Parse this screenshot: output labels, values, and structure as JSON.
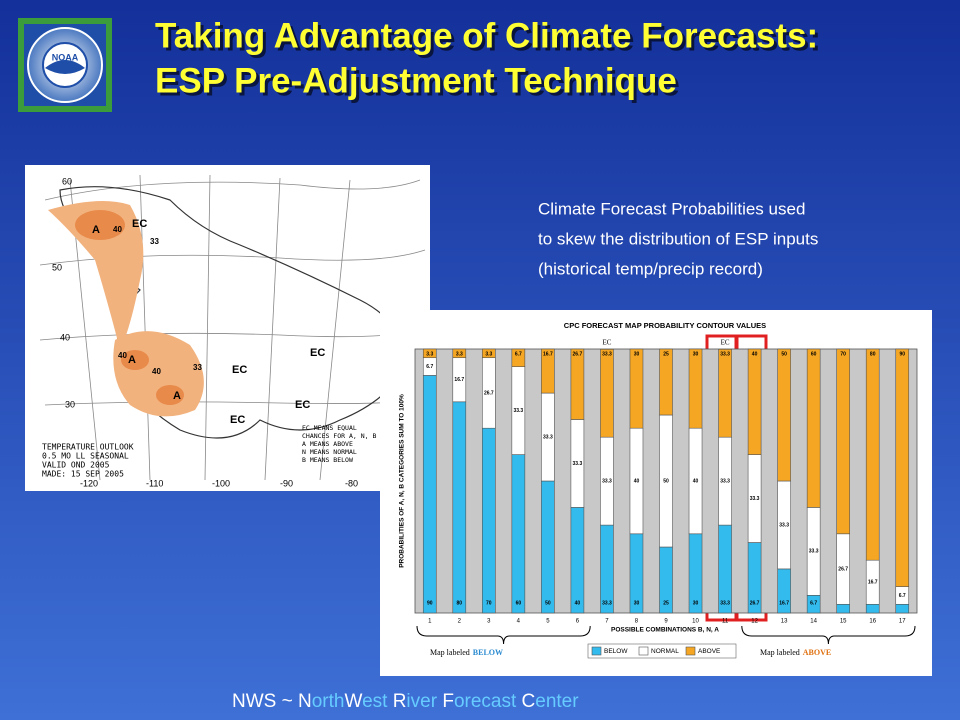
{
  "slide": {
    "title": [
      "Taking Advantage of Climate Forecasts:",
      "ESP Pre-Adjustment Technique"
    ],
    "description": [
      "Climate Forecast Probabilities used",
      "to skew the distribution of ESP inputs",
      "(historical temp/precip record)"
    ],
    "footer": [
      "NWS ~ ",
      "N",
      "orth",
      "W",
      "est",
      " R",
      "iver",
      " F",
      "orecast",
      " C",
      "enter"
    ],
    "logo": "NOAA",
    "map": {
      "outlook": [
        "TEMPERATURE OUTLOOK",
        "0.5 MO LL SEASONAL",
        "VALID OND 2005",
        "MADE: 15 SEP 2005"
      ],
      "legend": [
        "EC MEANS EQUAL",
        "CHANCES FOR A, N, B",
        "A MEANS ABOVE",
        "N MEANS NORMAL",
        "B MEANS BELOW"
      ],
      "lat_labels": [
        "60",
        "50",
        "40",
        "30"
      ],
      "lon_labels": [
        "-120",
        "-110",
        "-100",
        "-90",
        "-80"
      ],
      "regions": [
        "EC",
        "EC",
        "EC",
        "EC",
        "EC",
        "A",
        "A",
        "A",
        "40",
        "33",
        "40",
        "33",
        "40"
      ]
    }
  },
  "chart_data": {
    "type": "stacked_bar",
    "title": "CPC FORECAST MAP PROBABILITY CONTOUR VALUES",
    "y_label": "PROBABILITIES OF A, N, B CATEGORIES SUM TO 100%",
    "x_label": "POSSIBLE COMBINATIONS B, N, A",
    "categories": [
      "1",
      "2",
      "3",
      "4",
      "5",
      "6",
      "7",
      "8",
      "9",
      "10",
      "11",
      "12",
      "13",
      "14",
      "15",
      "16",
      "17"
    ],
    "series": [
      {
        "name": "BELOW",
        "color": "#33bbee",
        "values": [
          90,
          80,
          70,
          60,
          50,
          40,
          33.3,
          30,
          25,
          30,
          33.3,
          26.7,
          16.7,
          6.7,
          3.3,
          3.3,
          3.3
        ]
      },
      {
        "name": "NORMAL",
        "color": "#ffffff",
        "values": [
          6.7,
          16.7,
          26.7,
          33.3,
          33.3,
          33.3,
          33.3,
          40,
          50,
          40,
          33.3,
          33.3,
          33.3,
          33.3,
          26.7,
          16.7,
          6.7
        ]
      },
      {
        "name": "ABOVE",
        "color": "#f5a623",
        "values": [
          3.3,
          3.3,
          3.3,
          6.7,
          16.7,
          26.7,
          33.3,
          30,
          25,
          30,
          33.3,
          40,
          50,
          60,
          70,
          80,
          90
        ]
      }
    ],
    "ylim": [
      0,
      100
    ],
    "annotations": [
      "EC",
      "EC"
    ],
    "brackets": [
      {
        "text": "Map labeled",
        "emphasis": "BELOW"
      },
      {
        "text": "Map labeled",
        "emphasis": "ABOVE"
      }
    ]
  }
}
